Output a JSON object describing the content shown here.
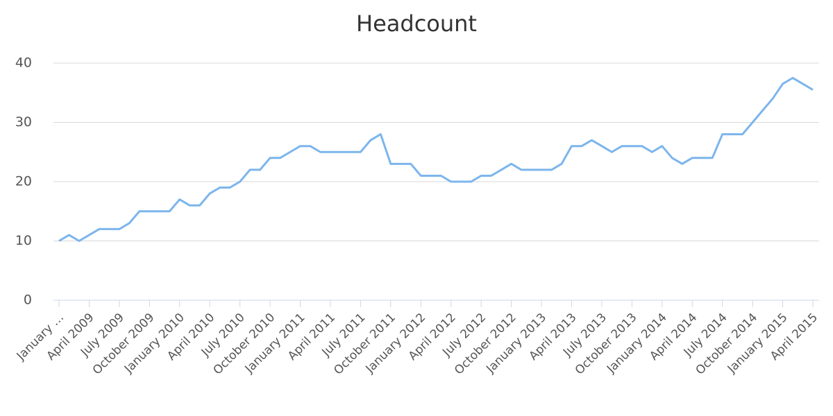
{
  "chart_data": {
    "type": "line",
    "title": "Headcount",
    "categories": [
      "January …",
      null,
      null,
      "April 2009",
      null,
      null,
      "July 2009",
      null,
      null,
      "October 2009",
      null,
      null,
      "January 2010",
      null,
      null,
      "April 2010",
      null,
      null,
      "July 2010",
      null,
      null,
      "October 2010",
      null,
      null,
      "January 2011",
      null,
      null,
      "April 2011",
      null,
      null,
      "July 2011",
      null,
      null,
      "October 2011",
      null,
      null,
      "January 2012",
      null,
      null,
      "April 2012",
      null,
      null,
      "July 2012",
      null,
      null,
      "October 2012",
      null,
      null,
      "January 2013",
      null,
      null,
      "April 2013",
      null,
      null,
      "July 2013",
      null,
      null,
      "October 2013",
      null,
      null,
      "January 2014",
      null,
      null,
      "April 2014",
      null,
      null,
      "July 2014",
      null,
      null,
      "October 2014",
      null,
      null,
      "January 2015",
      null,
      null,
      "April 2015"
    ],
    "values": [
      10,
      11,
      10,
      11,
      12,
      12,
      12,
      13,
      15,
      15,
      15,
      15,
      17,
      16,
      16,
      18,
      19,
      19,
      20,
      22,
      22,
      24,
      24,
      25,
      26,
      26,
      25,
      25,
      25,
      25,
      25,
      27,
      28,
      23,
      23,
      23,
      21,
      21,
      21,
      20,
      20,
      20,
      21,
      21,
      22,
      23,
      22,
      22,
      22,
      22,
      23,
      26,
      26,
      27,
      26,
      25,
      26,
      26,
      26,
      25,
      26,
      24,
      23,
      24,
      24,
      24,
      28,
      28,
      28,
      30,
      32,
      34,
      36.5,
      37.5,
      36.5,
      35.5
    ],
    "color": "#7cb5ec",
    "ylim": [
      0,
      40
    ],
    "yticks": [
      0,
      10,
      20,
      30,
      40
    ],
    "grid": true
  }
}
